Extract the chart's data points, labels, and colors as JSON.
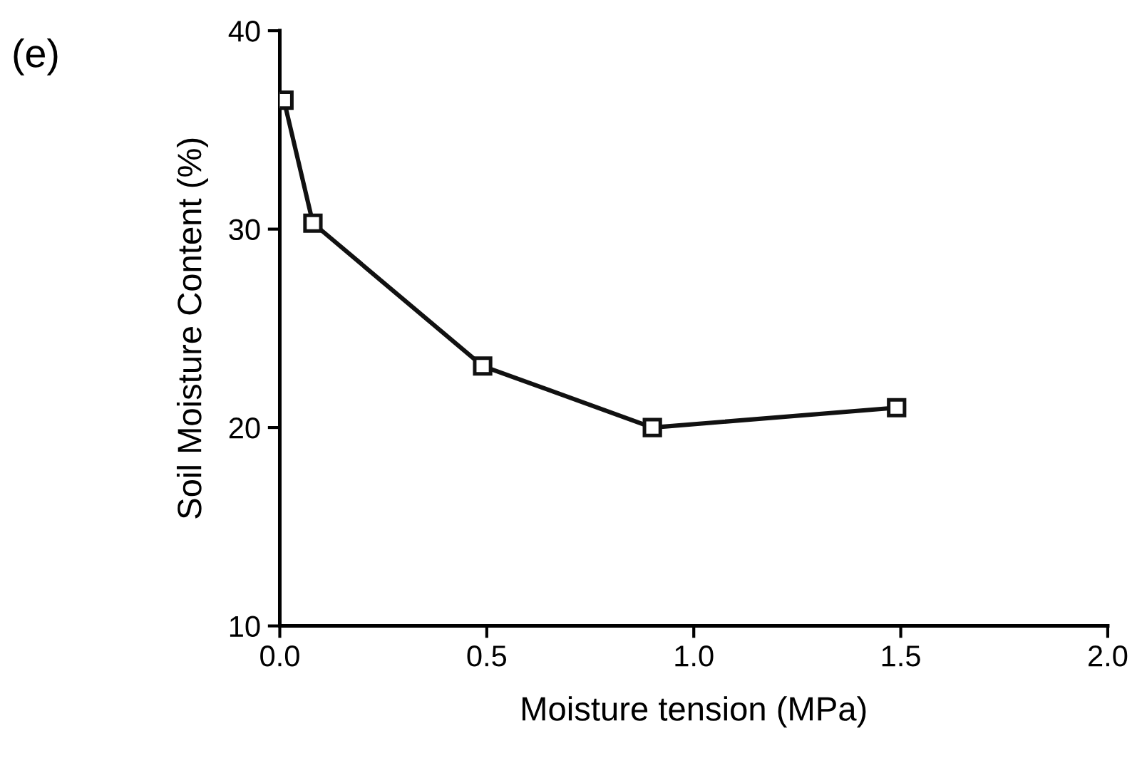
{
  "chart_data": {
    "type": "line",
    "xlabel": "Moisture tension (MPa)",
    "ylabel": "Soil Moisture Content (%)",
    "annotations": [
      "(e)"
    ],
    "x": [
      0.01,
      0.08,
      0.49,
      0.9,
      1.49
    ],
    "series": [
      {
        "color": "#111111",
        "values": [
          36.5,
          30.3,
          23.1,
          20.0,
          21.0
        ]
      }
    ],
    "xlim": [
      0.0,
      2.0
    ],
    "ylim": [
      10,
      40
    ],
    "xticks": [
      {
        "value": 0.0,
        "label": "0.0"
      },
      {
        "value": 0.5,
        "label": "0.5"
      },
      {
        "value": 1.0,
        "label": "1.0"
      },
      {
        "value": 1.5,
        "label": "1.5"
      },
      {
        "value": 2.0,
        "label": "2.0"
      }
    ],
    "yticks": [
      10,
      20,
      30,
      40
    ],
    "marker": "square",
    "line_style": "solid",
    "grid": false,
    "legend": false
  }
}
